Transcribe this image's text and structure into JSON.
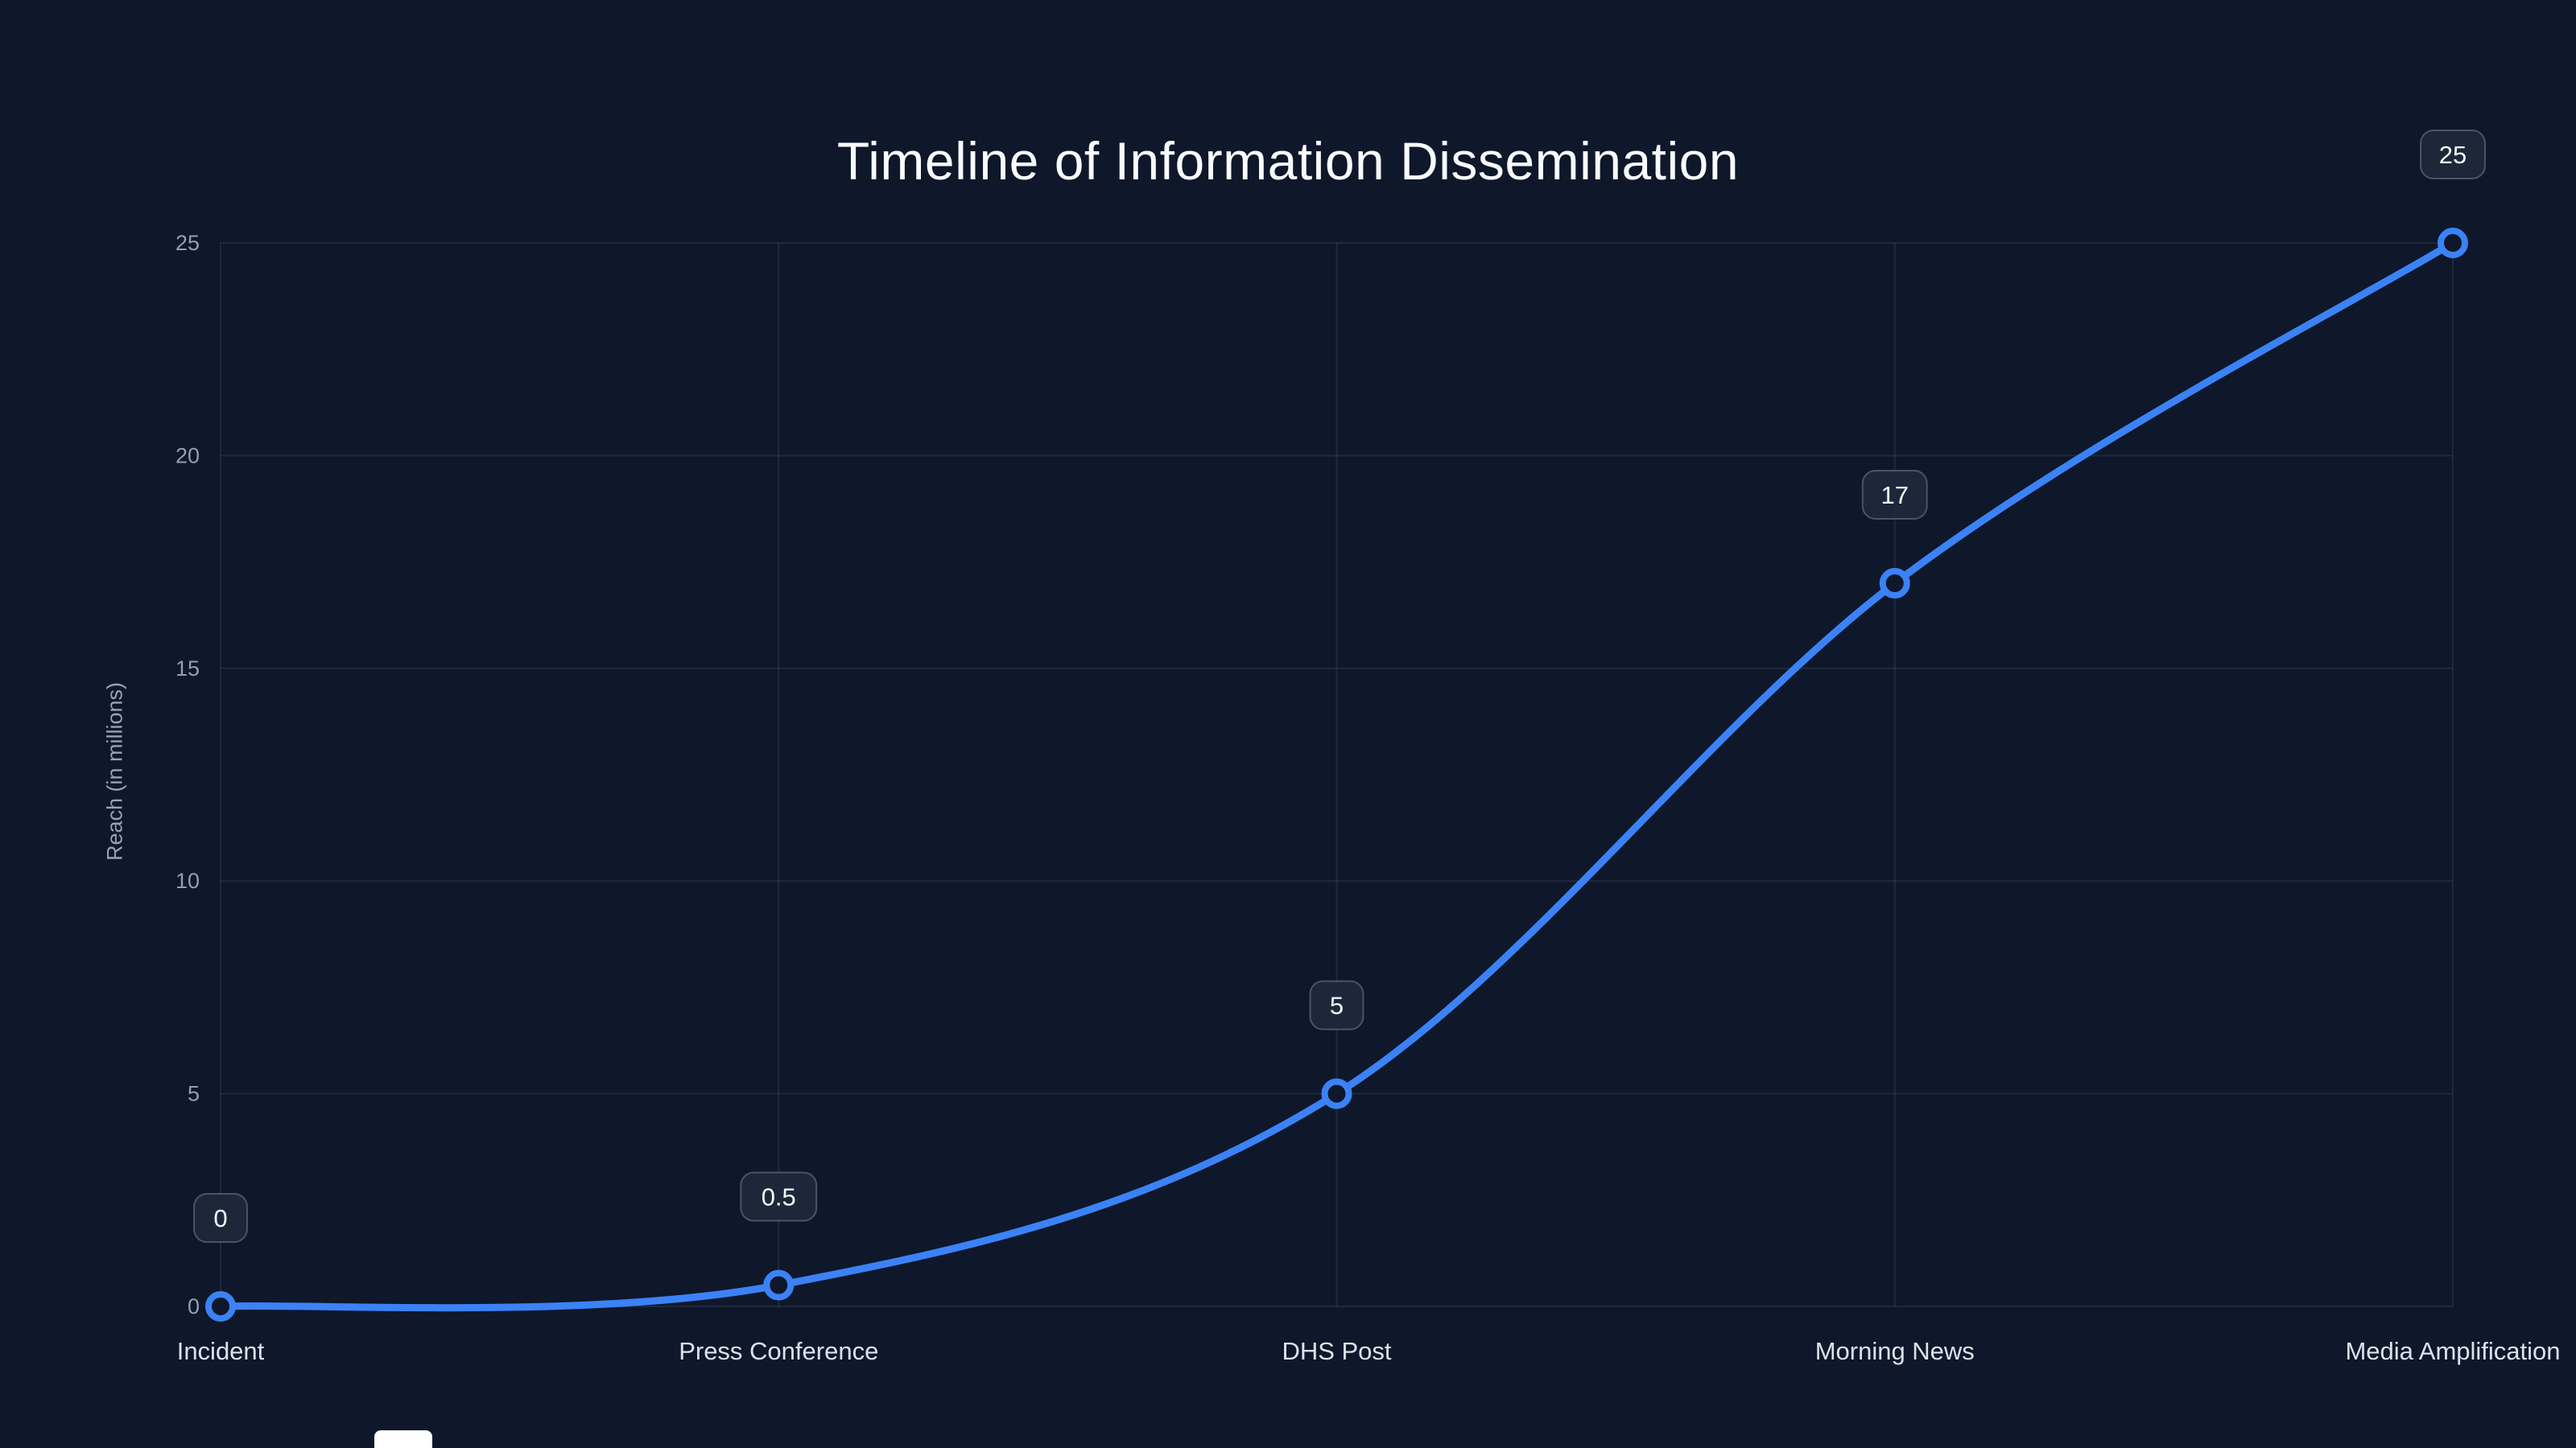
{
  "colors": {
    "background": "#0f172a",
    "title": "#f8fafc",
    "line": "#3b82f6",
    "grid": "rgba(148,163,184,0.13)",
    "tick_label": "#8fa0b5",
    "category_label": "#dbe2ea",
    "axis_title": "#94a3b8",
    "badge_bg": "#1e293b",
    "badge_border": "rgba(148,163,184,0.4)",
    "badge_text": "#f8fafc",
    "point_fill": "#0f172a"
  },
  "chart_data": {
    "type": "line",
    "title": "Timeline of Information Dissemination",
    "categories": [
      "Incident",
      "Press Conference",
      "DHS Post",
      "Morning News",
      "Media Amplification"
    ],
    "values": [
      0,
      0.5,
      5,
      17,
      25
    ],
    "point_labels": [
      "0",
      "0.5",
      "5",
      "17",
      "25"
    ],
    "xlabel": "",
    "ylabel": "Reach (in millions)",
    "yticks": [
      0,
      5,
      10,
      15,
      20,
      25
    ],
    "ylim": [
      0,
      25
    ],
    "grid": true,
    "legend": "none",
    "smooth": true
  }
}
